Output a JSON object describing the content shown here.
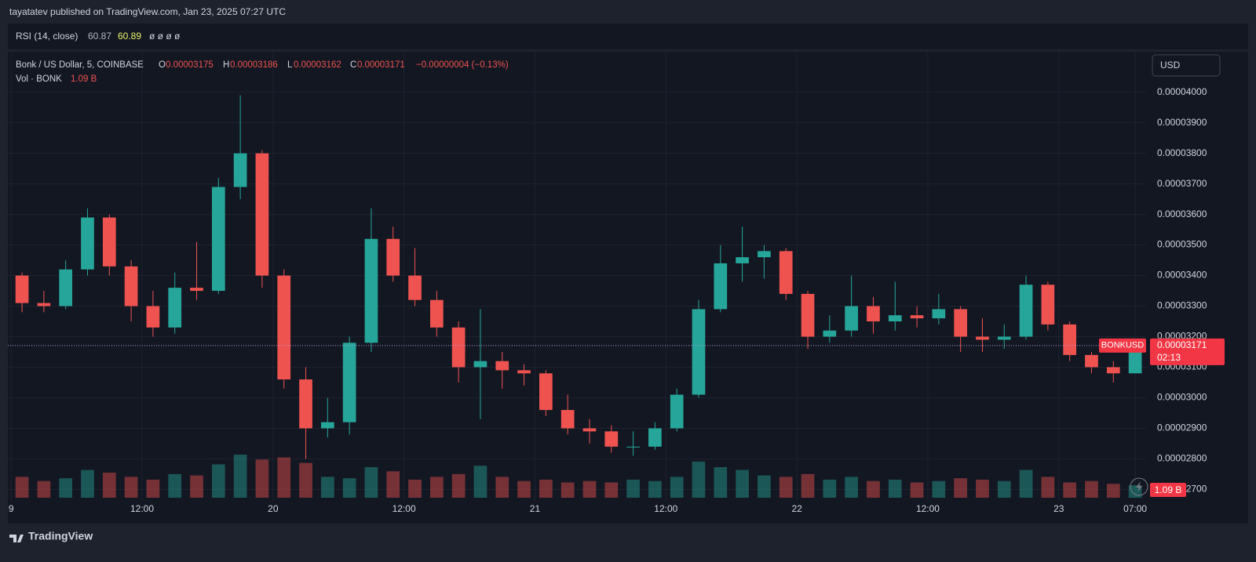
{
  "header": {
    "publisher": "tayatatev published on TradingView.com, Jan 23, 2025 07:27 UTC"
  },
  "rsi": {
    "label": "RSI (14, close)",
    "value1": "60.87",
    "value2": "60.89",
    "extra": "ø ø ø ø"
  },
  "legend": {
    "symbol": "Bonk / US Dollar, 5, COINBASE",
    "o_label": "O",
    "o": "0.00003175",
    "h_label": "H",
    "h": "0.00003186",
    "l_label": "L",
    "l": "0.00003162",
    "c_label": "C",
    "c": "0.00003171",
    "change": "−0.00000004 (−0.13%)",
    "vol_label": "Vol · BONK",
    "vol": "1.09 B"
  },
  "currency_button": "USD",
  "price_tag": {
    "symbol": "BONKUSD",
    "price": "0.00003171",
    "countdown": "02:13"
  },
  "volume_tag": "1.09 B",
  "footer": {
    "brand": "TradingView"
  },
  "chart_data": {
    "type": "candlestick",
    "up_color": "#26a69a",
    "down_color": "#ef5350",
    "x": [
      1,
      3,
      5,
      7,
      9,
      11,
      13,
      15,
      17,
      19,
      21,
      23,
      25,
      27,
      29,
      31,
      33,
      35,
      37,
      39,
      41,
      43,
      45,
      47,
      49,
      51,
      53,
      55,
      57,
      59,
      61,
      63,
      65,
      67,
      69,
      71,
      73,
      75,
      77,
      79,
      81,
      83,
      85,
      87,
      89,
      91,
      93,
      95,
      97,
      99,
      101,
      103
    ],
    "open": [
      3.4e-05,
      3.31e-05,
      3.3e-05,
      3.42e-05,
      3.59e-05,
      3.43e-05,
      3.3e-05,
      3.23e-05,
      3.36e-05,
      3.35e-05,
      3.69e-05,
      3.8e-05,
      3.4e-05,
      3.06e-05,
      2.9e-05,
      2.92e-05,
      3.18e-05,
      3.52e-05,
      3.4e-05,
      3.32e-05,
      3.23e-05,
      3.1e-05,
      3.12e-05,
      3.09e-05,
      3.08e-05,
      2.96e-05,
      2.9e-05,
      2.89e-05,
      2.84e-05,
      2.84e-05,
      2.9e-05,
      3.01e-05,
      3.29e-05,
      3.44e-05,
      3.46e-05,
      3.48e-05,
      3.34e-05,
      3.2e-05,
      3.22e-05,
      3.3e-05,
      3.25e-05,
      3.27e-05,
      3.26e-05,
      3.29e-05,
      3.2e-05,
      3.19e-05,
      3.2e-05,
      3.37e-05,
      3.24e-05,
      3.14e-05,
      3.1e-05,
      3.08e-05
    ],
    "high": [
      3.41e-05,
      3.35e-05,
      3.45e-05,
      3.62e-05,
      3.6e-05,
      3.45e-05,
      3.35e-05,
      3.41e-05,
      3.51e-05,
      3.72e-05,
      3.99e-05,
      3.81e-05,
      3.42e-05,
      3.1e-05,
      3e-05,
      3.2e-05,
      3.62e-05,
      3.56e-05,
      3.49e-05,
      3.35e-05,
      3.25e-05,
      3.29e-05,
      3.15e-05,
      3.11e-05,
      3.09e-05,
      3.01e-05,
      2.93e-05,
      2.91e-05,
      2.89e-05,
      2.92e-05,
      3.03e-05,
      3.32e-05,
      3.5e-05,
      3.56e-05,
      3.5e-05,
      3.49e-05,
      3.35e-05,
      3.27e-05,
      3.4e-05,
      3.33e-05,
      3.38e-05,
      3.3e-05,
      3.34e-05,
      3.3e-05,
      3.26e-05,
      3.24e-05,
      3.4e-05,
      3.38e-05,
      3.25e-05,
      3.15e-05,
      3.12e-05,
      3.18e-05
    ],
    "low": [
      3.28e-05,
      3.28e-05,
      3.29e-05,
      3.4e-05,
      3.4e-05,
      3.25e-05,
      3.2e-05,
      3.21e-05,
      3.32e-05,
      3.34e-05,
      3.65e-05,
      3.36e-05,
      3.03e-05,
      2.8e-05,
      2.87e-05,
      2.88e-05,
      3.15e-05,
      3.38e-05,
      3.3e-05,
      3.2e-05,
      3.05e-05,
      2.93e-05,
      3.03e-05,
      3.04e-05,
      2.94e-05,
      2.88e-05,
      2.85e-05,
      2.82e-05,
      2.81e-05,
      2.83e-05,
      2.89e-05,
      3e-05,
      3.28e-05,
      3.38e-05,
      3.39e-05,
      3.32e-05,
      3.16e-05,
      3.18e-05,
      3.2e-05,
      3.21e-05,
      3.22e-05,
      3.23e-05,
      3.24e-05,
      3.15e-05,
      3.15e-05,
      3.16e-05,
      3.19e-05,
      3.22e-05,
      3.12e-05,
      3.08e-05,
      3.05e-05,
      3.08e-05
    ],
    "close": [
      3.31e-05,
      3.3e-05,
      3.42e-05,
      3.59e-05,
      3.43e-05,
      3.3e-05,
      3.23e-05,
      3.36e-05,
      3.35e-05,
      3.69e-05,
      3.8e-05,
      3.4e-05,
      3.06e-05,
      2.9e-05,
      2.92e-05,
      3.18e-05,
      3.52e-05,
      3.4e-05,
      3.32e-05,
      3.23e-05,
      3.1e-05,
      3.12e-05,
      3.09e-05,
      3.08e-05,
      2.96e-05,
      2.9e-05,
      2.89e-05,
      2.84e-05,
      2.84e-05,
      2.9e-05,
      3.01e-05,
      3.29e-05,
      3.44e-05,
      3.46e-05,
      3.48e-05,
      3.34e-05,
      3.2e-05,
      3.22e-05,
      3.3e-05,
      3.25e-05,
      3.27e-05,
      3.26e-05,
      3.29e-05,
      3.2e-05,
      3.19e-05,
      3.2e-05,
      3.37e-05,
      3.24e-05,
      3.14e-05,
      3.1e-05,
      3.08e-05,
      3.171e-05
    ],
    "volume": [
      30,
      24,
      28,
      40,
      36,
      30,
      26,
      34,
      32,
      48,
      62,
      55,
      58,
      50,
      30,
      28,
      44,
      38,
      26,
      30,
      34,
      46,
      30,
      24,
      26,
      22,
      24,
      22,
      26,
      24,
      30,
      52,
      44,
      40,
      32,
      30,
      34,
      26,
      30,
      24,
      26,
      22,
      24,
      28,
      26,
      24,
      40,
      30,
      22,
      24,
      20,
      18
    ],
    "xlim": [
      -0.3,
      104
    ],
    "xticks": [
      {
        "value": 0,
        "label": "9"
      },
      {
        "value": 12,
        "label": "12:00"
      },
      {
        "value": 24,
        "label": "20"
      },
      {
        "value": 36,
        "label": "12:00"
      },
      {
        "value": 48,
        "label": "21"
      },
      {
        "value": 60,
        "label": "12:00"
      },
      {
        "value": 72,
        "label": "22"
      },
      {
        "value": 84,
        "label": "12:00"
      },
      {
        "value": 96,
        "label": "23"
      },
      {
        "value": 103,
        "label": "07:00"
      }
    ],
    "ylim": [
      2.66e-05,
      4.13e-05
    ],
    "yticks": [
      {
        "value": 2.7e-05,
        "label": "0.00002700"
      },
      {
        "value": 2.8e-05,
        "label": "0.00002800"
      },
      {
        "value": 2.9e-05,
        "label": "0.00002900"
      },
      {
        "value": 3e-05,
        "label": "0.00003000"
      },
      {
        "value": 3.1e-05,
        "label": "0.00003100"
      },
      {
        "value": 3.2e-05,
        "label": "0.00003200"
      },
      {
        "value": 3.3e-05,
        "label": "0.00003300"
      },
      {
        "value": 3.4e-05,
        "label": "0.00003400"
      },
      {
        "value": 3.5e-05,
        "label": "0.00003500"
      },
      {
        "value": 3.6e-05,
        "label": "0.00003600"
      },
      {
        "value": 3.7e-05,
        "label": "0.00003700"
      },
      {
        "value": 3.8e-05,
        "label": "0.00003800"
      },
      {
        "value": 3.9e-05,
        "label": "0.00003900"
      },
      {
        "value": 4e-05,
        "label": "0.00004000"
      }
    ],
    "grid": true
  }
}
